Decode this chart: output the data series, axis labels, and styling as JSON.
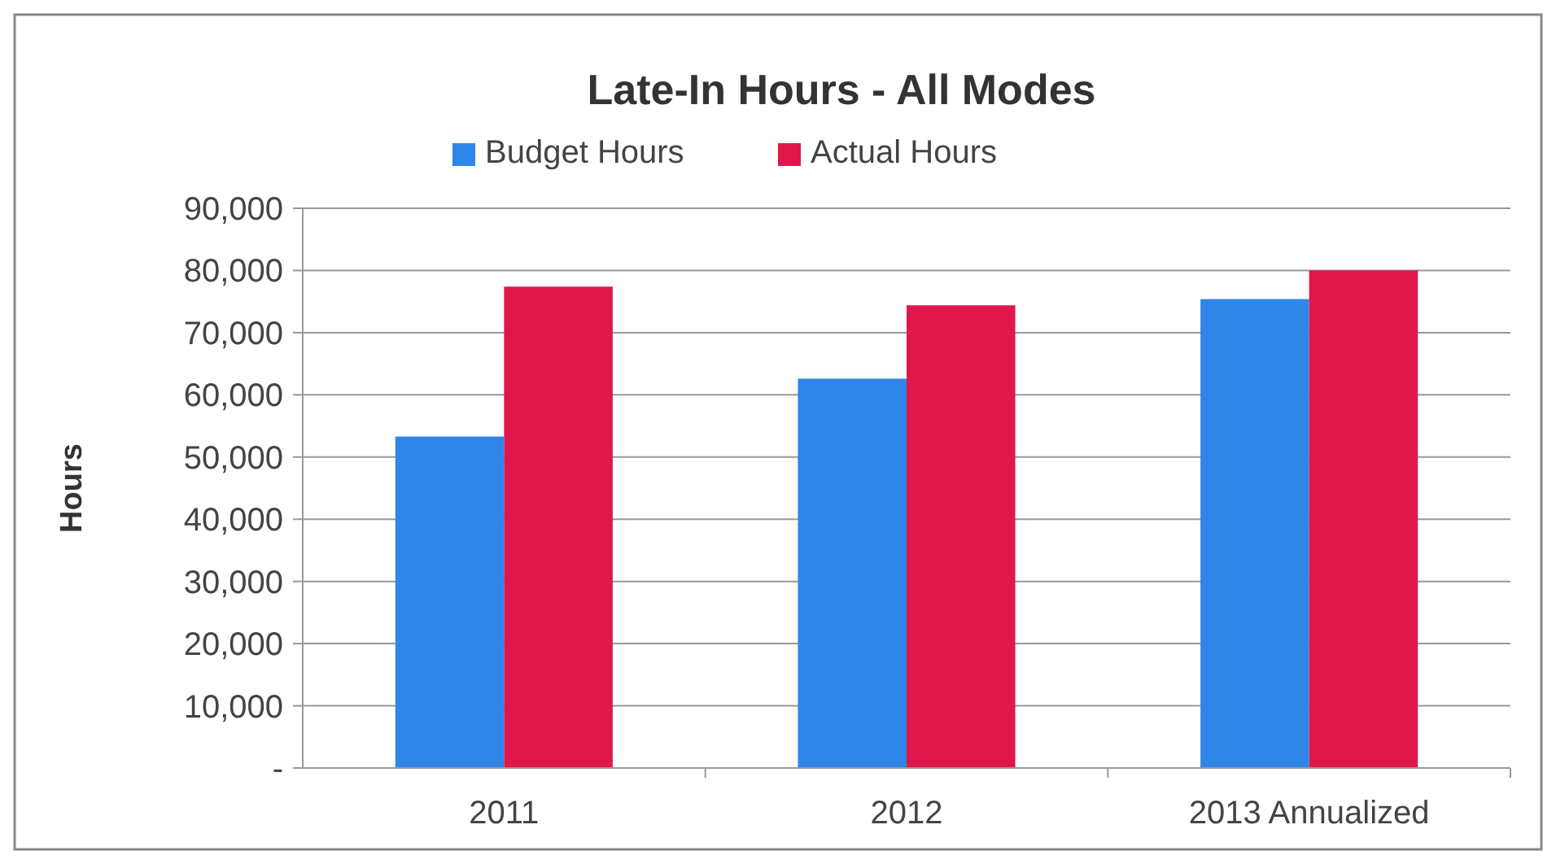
{
  "chart_data": {
    "type": "bar",
    "title": "Late-In Hours - All Modes",
    "ylabel": "Hours",
    "categories": [
      "2011",
      "2012",
      "2013 Annualized"
    ],
    "series": [
      {
        "name": "Budget Hours",
        "color": "#2f86e8",
        "values": [
          53300,
          62600,
          75400
        ]
      },
      {
        "name": "Actual Hours",
        "color": "#e0174a",
        "values": [
          77400,
          74400,
          80000
        ]
      }
    ],
    "ylim": [
      0,
      90000
    ],
    "yticks": [
      {
        "value": 0,
        "label": "-"
      },
      {
        "value": 10000,
        "label": "10,000"
      },
      {
        "value": 20000,
        "label": "20,000"
      },
      {
        "value": 30000,
        "label": "30,000"
      },
      {
        "value": 40000,
        "label": "40,000"
      },
      {
        "value": 50000,
        "label": "50,000"
      },
      {
        "value": 60000,
        "label": "60,000"
      },
      {
        "value": 70000,
        "label": "70,000"
      },
      {
        "value": 80000,
        "label": "80,000"
      },
      {
        "value": 90000,
        "label": "90,000"
      }
    ],
    "grid": "y",
    "legend": "top"
  }
}
